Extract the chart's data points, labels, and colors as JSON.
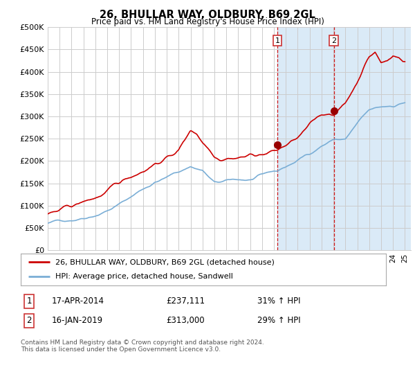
{
  "title": "26, BHULLAR WAY, OLDBURY, B69 2GL",
  "subtitle": "Price paid vs. HM Land Registry's House Price Index (HPI)",
  "ylabel_ticks": [
    "£0",
    "£50K",
    "£100K",
    "£150K",
    "£200K",
    "£250K",
    "£300K",
    "£350K",
    "£400K",
    "£450K",
    "£500K"
  ],
  "ytick_values": [
    0,
    50000,
    100000,
    150000,
    200000,
    250000,
    300000,
    350000,
    400000,
    450000,
    500000
  ],
  "ylim": [
    0,
    500000
  ],
  "xlim_start": 1995.0,
  "xlim_end": 2025.5,
  "sale1_year": 2014.29,
  "sale1_price": 237111,
  "sale2_year": 2019.04,
  "sale2_price": 313000,
  "line_color_property": "#cc0000",
  "line_color_hpi": "#7aaed6",
  "shade_color": "#daeaf7",
  "vline_color": "#cc0000",
  "marker_color_property": "#990000",
  "legend_label_property": "26, BHULLAR WAY, OLDBURY, B69 2GL (detached house)",
  "legend_label_hpi": "HPI: Average price, detached house, Sandwell",
  "note1_num": "1",
  "note1_date": "17-APR-2014",
  "note1_price": "£237,111",
  "note1_hpi": "31% ↑ HPI",
  "note2_num": "2",
  "note2_date": "16-JAN-2019",
  "note2_price": "£313,000",
  "note2_hpi": "29% ↑ HPI",
  "footer": "Contains HM Land Registry data © Crown copyright and database right 2024.\nThis data is licensed under the Open Government Licence v3.0.",
  "bg_color": "#ffffff",
  "grid_color": "#cccccc"
}
